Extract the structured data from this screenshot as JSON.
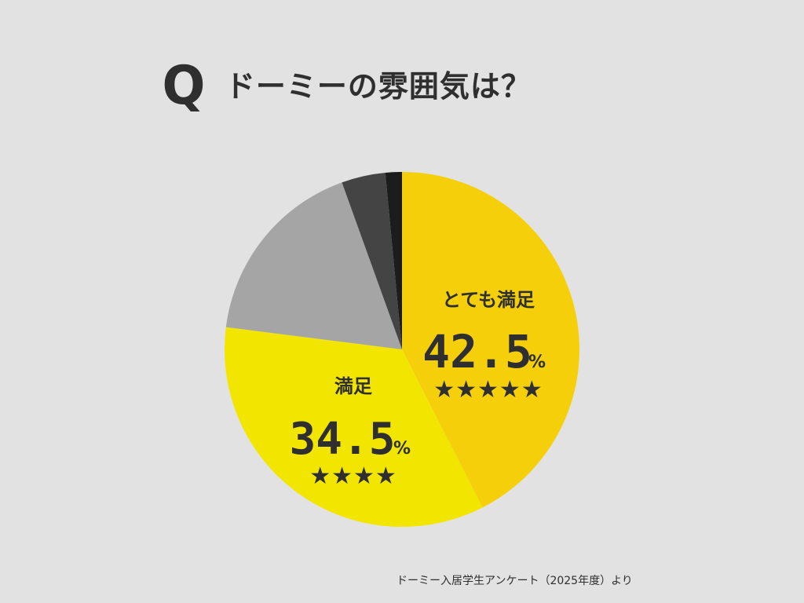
{
  "title": {
    "q": "Q",
    "text": "ドーミーの雰囲気は？"
  },
  "source": "ドーミー入居学生アンケート（2025年度）より",
  "chart_data": {
    "type": "pie",
    "start_angle_deg": 0,
    "direction": "clockwise",
    "slices": [
      {
        "label": "とても満足",
        "value": 42.5,
        "display": "42.5",
        "unit": "%",
        "stars": "★★★★★",
        "color": "#f5cf0a",
        "shown": true
      },
      {
        "label": "満足",
        "value": 34.5,
        "display": "34.5",
        "unit": "%",
        "stars": "★★★★",
        "color": "#f2e600",
        "shown": true
      },
      {
        "label": "",
        "value": 17.5,
        "color": "#a5a5a5",
        "shown": false
      },
      {
        "label": "",
        "value": 4.0,
        "color": "#444444",
        "shown": false
      },
      {
        "label": "",
        "value": 1.5,
        "color": "#1c1c1c",
        "shown": false
      }
    ]
  }
}
